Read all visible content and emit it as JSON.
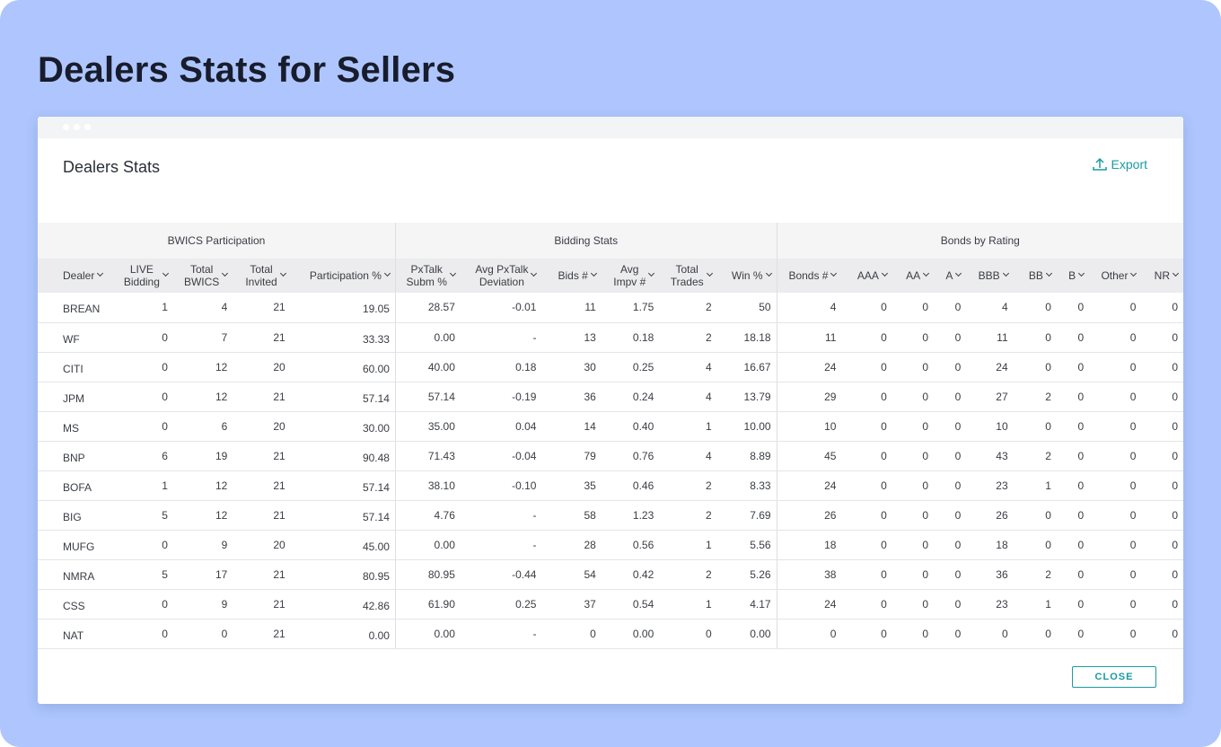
{
  "page_title": "Dealers Stats for Sellers",
  "modal": {
    "title": "Dealers Stats",
    "export_label": "Export",
    "close_label": "CLOSE"
  },
  "colors": {
    "accent": "#1a9aa3",
    "background": "#aec6fd",
    "title": "#181c2c"
  },
  "table": {
    "groups": [
      "BWICS Participation",
      "Bidding Stats",
      "Bonds by Rating"
    ],
    "columns": [
      {
        "l1": "Dealer",
        "l2": ""
      },
      {
        "l1": "LIVE",
        "l2": "Bidding"
      },
      {
        "l1": "Total",
        "l2": "BWICS"
      },
      {
        "l1": "Total",
        "l2": "Invited"
      },
      {
        "l1": "Participation %",
        "l2": ""
      },
      {
        "l1": "PxTalk",
        "l2": "Subm %"
      },
      {
        "l1": "Avg PxTalk",
        "l2": "Deviation"
      },
      {
        "l1": "Bids #",
        "l2": ""
      },
      {
        "l1": "Avg",
        "l2": "Impv #"
      },
      {
        "l1": "Total",
        "l2": "Trades"
      },
      {
        "l1": "Win %",
        "l2": ""
      },
      {
        "l1": "Bonds #",
        "l2": ""
      },
      {
        "l1": "AAA",
        "l2": ""
      },
      {
        "l1": "AA",
        "l2": ""
      },
      {
        "l1": "A",
        "l2": ""
      },
      {
        "l1": "BBB",
        "l2": ""
      },
      {
        "l1": "BB",
        "l2": ""
      },
      {
        "l1": "B",
        "l2": ""
      },
      {
        "l1": "Other",
        "l2": ""
      },
      {
        "l1": "NR",
        "l2": ""
      }
    ],
    "rows": [
      [
        "BREAN",
        "1",
        "4",
        "21",
        "19.05",
        "28.57",
        "-0.01",
        "11",
        "1.75",
        "2",
        "50",
        "4",
        "0",
        "0",
        "0",
        "4",
        "0",
        "0",
        "0",
        "0"
      ],
      [
        "WF",
        "0",
        "7",
        "21",
        "33.33",
        "0.00",
        "-",
        "13",
        "0.18",
        "2",
        "18.18",
        "11",
        "0",
        "0",
        "0",
        "11",
        "0",
        "0",
        "0",
        "0"
      ],
      [
        "CITI",
        "0",
        "12",
        "20",
        "60.00",
        "40.00",
        "0.18",
        "30",
        "0.25",
        "4",
        "16.67",
        "24",
        "0",
        "0",
        "0",
        "24",
        "0",
        "0",
        "0",
        "0"
      ],
      [
        "JPM",
        "0",
        "12",
        "21",
        "57.14",
        "57.14",
        "-0.19",
        "36",
        "0.24",
        "4",
        "13.79",
        "29",
        "0",
        "0",
        "0",
        "27",
        "2",
        "0",
        "0",
        "0"
      ],
      [
        "MS",
        "0",
        "6",
        "20",
        "30.00",
        "35.00",
        "0.04",
        "14",
        "0.40",
        "1",
        "10.00",
        "10",
        "0",
        "0",
        "0",
        "10",
        "0",
        "0",
        "0",
        "0"
      ],
      [
        "BNP",
        "6",
        "19",
        "21",
        "90.48",
        "71.43",
        "-0.04",
        "79",
        "0.76",
        "4",
        "8.89",
        "45",
        "0",
        "0",
        "0",
        "43",
        "2",
        "0",
        "0",
        "0"
      ],
      [
        "BOFA",
        "1",
        "12",
        "21",
        "57.14",
        "38.10",
        "-0.10",
        "35",
        "0.46",
        "2",
        "8.33",
        "24",
        "0",
        "0",
        "0",
        "23",
        "1",
        "0",
        "0",
        "0"
      ],
      [
        "BIG",
        "5",
        "12",
        "21",
        "57.14",
        "4.76",
        "-",
        "58",
        "1.23",
        "2",
        "7.69",
        "26",
        "0",
        "0",
        "0",
        "26",
        "0",
        "0",
        "0",
        "0"
      ],
      [
        "MUFG",
        "0",
        "9",
        "20",
        "45.00",
        "0.00",
        "-",
        "28",
        "0.56",
        "1",
        "5.56",
        "18",
        "0",
        "0",
        "0",
        "18",
        "0",
        "0",
        "0",
        "0"
      ],
      [
        "NMRA",
        "5",
        "17",
        "21",
        "80.95",
        "80.95",
        "-0.44",
        "54",
        "0.42",
        "2",
        "5.26",
        "38",
        "0",
        "0",
        "0",
        "36",
        "2",
        "0",
        "0",
        "0"
      ],
      [
        "CSS",
        "0",
        "9",
        "21",
        "42.86",
        "61.90",
        "0.25",
        "37",
        "0.54",
        "1",
        "4.17",
        "24",
        "0",
        "0",
        "0",
        "23",
        "1",
        "0",
        "0",
        "0"
      ],
      [
        "NAT",
        "0",
        "0",
        "21",
        "0.00",
        "0.00",
        "-",
        "0",
        "0.00",
        "0",
        "0.00",
        "0",
        "0",
        "0",
        "0",
        "0",
        "0",
        "0",
        "0",
        "0"
      ]
    ]
  }
}
